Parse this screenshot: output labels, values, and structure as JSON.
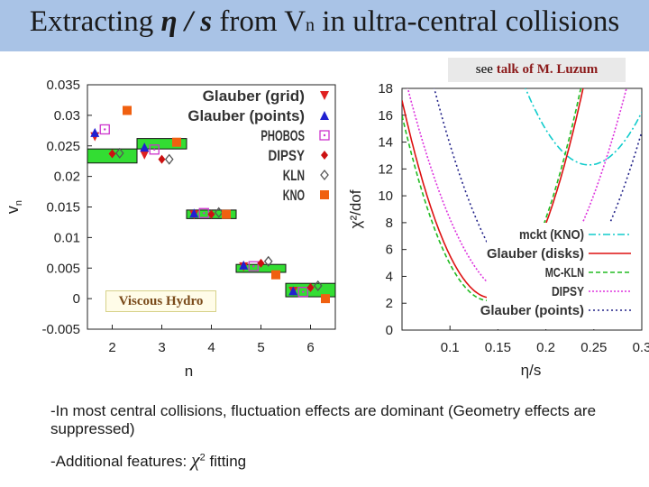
{
  "slide": {
    "title_pre": "Extracting",
    "title_symbol": "η / s",
    "title_mid": "from V",
    "title_sub": "n",
    "title_post": "in ultra-central collisions",
    "note_pre": "see",
    "note_highlight": "talk of M. Luzum",
    "hydro_label": "Viscous Hydro",
    "bullet1": "-In most central collisions, fluctuation effects are dominant (Geometry effects are suppressed)",
    "bullet2_pre": "-Additional features:",
    "chi_symbol": "χ",
    "chi_sup": "2",
    "bullet2_post": "fitting"
  },
  "chart_data": [
    {
      "type": "scatter",
      "title": "",
      "xlabel": "n",
      "ylabel": "v_n",
      "xlim": [
        1.5,
        6.5
      ],
      "ylim": [
        -0.005,
        0.035
      ],
      "xticks": [
        "2",
        "3",
        "4",
        "5",
        "6"
      ],
      "yticks": [
        "-0.005",
        "0",
        "0.005",
        "0.01",
        "0.015",
        "0.02",
        "0.025",
        "0.03",
        "0.035"
      ],
      "hydro_band": [
        {
          "n": 2,
          "low": 0.0222,
          "high": 0.0245
        },
        {
          "n": 3,
          "low": 0.0245,
          "high": 0.0262
        },
        {
          "n": 4,
          "low": 0.0131,
          "high": 0.0145
        },
        {
          "n": 5,
          "low": 0.0043,
          "high": 0.0056
        },
        {
          "n": 6,
          "low": 0.0003,
          "high": 0.0025
        }
      ],
      "series": [
        {
          "name": "Glauber (grid)",
          "marker": "triangle-down",
          "color": "#e02020",
          "fill": true,
          "x": [
            1.65,
            2.65,
            3.65,
            4.65,
            5.65
          ],
          "y": [
            0.0265,
            0.0235,
            0.0137,
            0.0052,
            0.0012
          ]
        },
        {
          "name": "Glauber (points)",
          "marker": "triangle",
          "color": "#2020d0",
          "fill": true,
          "x": [
            1.65,
            2.65,
            3.65,
            4.65,
            5.65
          ],
          "y": [
            0.0272,
            0.0248,
            0.014,
            0.0055,
            0.0013
          ]
        },
        {
          "name": "PHOBOS",
          "marker": "square-dot",
          "color": "#cc33cc",
          "fill": false,
          "x": [
            1.85,
            2.85,
            3.85,
            4.85,
            5.85
          ],
          "y": [
            0.0277,
            0.0244,
            0.014,
            0.0053,
            0.0011
          ]
        },
        {
          "name": "DIPSY",
          "marker": "diamond",
          "color": "#cc1111",
          "fill": true,
          "x": [
            2.0,
            3.0,
            4.0,
            5.0,
            6.0
          ],
          "y": [
            0.0237,
            0.0228,
            0.0138,
            0.0058,
            0.0018
          ]
        },
        {
          "name": "KLN",
          "marker": "diamond-open",
          "color": "#555555",
          "fill": false,
          "x": [
            2.15,
            3.15,
            4.15,
            5.15,
            6.15
          ],
          "y": [
            0.0238,
            0.0228,
            0.0141,
            0.0061,
            0.0021
          ]
        },
        {
          "name": "KNO",
          "marker": "square",
          "color": "#f06010",
          "fill": true,
          "x": [
            2.3,
            3.3,
            4.3,
            5.3,
            6.3
          ],
          "y": [
            0.0308,
            0.0256,
            0.0138,
            0.0039,
            0.0
          ]
        }
      ]
    },
    {
      "type": "line",
      "title": "",
      "xlabel": "η/s",
      "ylabel": "χ²/dof",
      "xlim": [
        0.05,
        0.3
      ],
      "ylim": [
        0,
        18
      ],
      "xticks": [
        "0.1",
        "0.15",
        "0.2",
        "0.25",
        "0.3"
      ],
      "yticks": [
        "0",
        "2",
        "4",
        "6",
        "8",
        "10",
        "12",
        "14",
        "16",
        "18"
      ],
      "series": [
        {
          "name": "mckt (KNO)",
          "color": "#11cccc",
          "dash": "8,3,2,3",
          "min_x": 0.245,
          "min_y": 12.3,
          "curv": 1300
        },
        {
          "name": "Glauber (disks)",
          "color": "#dd1111",
          "dash": "",
          "min_x": 0.143,
          "min_y": 2.4,
          "curv": 1700
        },
        {
          "name": "MC-KLN",
          "color": "#22bb22",
          "dash": "5,3",
          "min_x": 0.14,
          "min_y": 2.2,
          "curv": 1700
        },
        {
          "name": "DIPSY",
          "color": "#dd33dd",
          "dash": "2,2",
          "min_x": 0.17,
          "min_y": 2.4,
          "curv": 1200
        },
        {
          "name": "Glauber (points)",
          "color": "#222288",
          "dash": "2,3",
          "min_x": 0.198,
          "min_y": 2.3,
          "curv": 1200
        }
      ]
    }
  ]
}
